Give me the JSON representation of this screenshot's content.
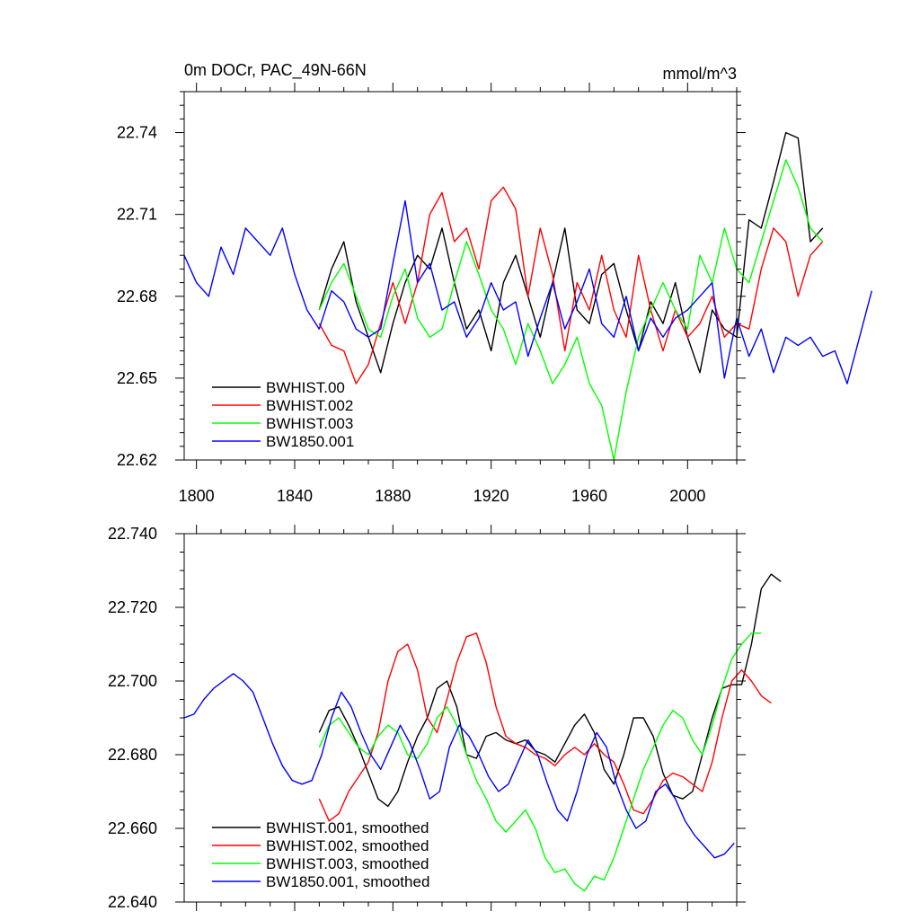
{
  "chart_data": [
    {
      "type": "line",
      "title": "0m DOCr, PAC_49N-66N",
      "units": "mmol/m^3",
      "xlabel": "",
      "ylabel": "",
      "xlim": [
        1795,
        2020
      ],
      "ylim": [
        22.62,
        22.755
      ],
      "xticks": [
        1800,
        1840,
        1880,
        1920,
        1960,
        2000
      ],
      "xtick_labels": [
        "1800",
        "1840",
        "1880",
        "1920",
        "1960",
        "2000"
      ],
      "yticks": [
        22.62,
        22.65,
        22.68,
        22.71,
        22.74
      ],
      "ytick_labels": [
        "22.62",
        "22.65",
        "22.68",
        "22.71",
        "22.74"
      ],
      "legend_position": "bottom-left",
      "series": [
        {
          "name": "BWHIST.00",
          "color": "#000000",
          "x0": 1850,
          "step": 5,
          "values": [
            22.675,
            22.69,
            22.7,
            22.678,
            22.665,
            22.652,
            22.67,
            22.685,
            22.695,
            22.69,
            22.705,
            22.685,
            22.668,
            22.675,
            22.66,
            22.685,
            22.695,
            22.68,
            22.665,
            22.685,
            22.705,
            22.675,
            22.67,
            22.688,
            22.692,
            22.675,
            22.66,
            22.678,
            22.67,
            22.685,
            22.665,
            22.652,
            22.675,
            22.668,
            22.665,
            22.708,
            22.705,
            22.722,
            22.74,
            22.738,
            22.7,
            22.705
          ]
        },
        {
          "name": "BWHIST.002",
          "color": "#ff0000",
          "x0": 1850,
          "step": 5,
          "values": [
            22.67,
            22.662,
            22.66,
            22.648,
            22.655,
            22.67,
            22.685,
            22.67,
            22.685,
            22.71,
            22.718,
            22.7,
            22.705,
            22.69,
            22.715,
            22.72,
            22.712,
            22.68,
            22.705,
            22.688,
            22.66,
            22.685,
            22.675,
            22.695,
            22.675,
            22.665,
            22.695,
            22.675,
            22.66,
            22.675,
            22.665,
            22.67,
            22.68,
            22.665,
            22.67,
            22.668,
            22.69,
            22.705,
            22.7,
            22.68,
            22.695,
            22.7
          ]
        },
        {
          "name": "BWHIST.003",
          "color": "#00ff00",
          "x0": 1850,
          "step": 5,
          "values": [
            22.675,
            22.685,
            22.692,
            22.68,
            22.668,
            22.665,
            22.68,
            22.69,
            22.672,
            22.665,
            22.668,
            22.685,
            22.7,
            22.688,
            22.675,
            22.668,
            22.655,
            22.67,
            22.66,
            22.648,
            22.655,
            22.665,
            22.648,
            22.64,
            22.62,
            22.645,
            22.665,
            22.675,
            22.685,
            22.675,
            22.668,
            22.695,
            22.685,
            22.705,
            22.69,
            22.685,
            22.7,
            22.715,
            22.73,
            22.72,
            22.705,
            22.7
          ]
        },
        {
          "name": "BW1850.001",
          "color": "#0000ff",
          "x0": 1795,
          "step": 5,
          "values": [
            22.695,
            22.685,
            22.68,
            22.698,
            22.688,
            22.705,
            22.7,
            22.695,
            22.705,
            22.688,
            22.675,
            22.668,
            22.682,
            22.678,
            22.668,
            22.665,
            22.668,
            22.692,
            22.715,
            22.685,
            22.692,
            22.675,
            22.678,
            22.665,
            22.672,
            22.685,
            22.675,
            22.678,
            22.658,
            22.672,
            22.685,
            22.668,
            22.678,
            22.69,
            22.67,
            22.665,
            22.68,
            22.66,
            22.672,
            22.665,
            22.672,
            22.675,
            22.68,
            22.685,
            22.65,
            22.672,
            22.658,
            22.668,
            22.652,
            22.665,
            22.662,
            22.665,
            22.658,
            22.66,
            22.648,
            22.665,
            22.682
          ]
        }
      ]
    },
    {
      "type": "line",
      "title": "",
      "xlabel": "",
      "ylabel": "",
      "xlim": [
        1795,
        2020
      ],
      "ylim": [
        22.64,
        22.74
      ],
      "xticks": [
        1800,
        1840,
        1880,
        1920,
        1960,
        2000
      ],
      "yticks": [
        22.64,
        22.66,
        22.68,
        22.7,
        22.72,
        22.74
      ],
      "ytick_labels": [
        "22.640",
        "22.660",
        "22.680",
        "22.700",
        "22.720",
        "22.740"
      ],
      "legend_position": "bottom-left",
      "series": [
        {
          "name": "BWHIST.001, smoothed",
          "color": "#000000",
          "x0": 1850,
          "step": 4,
          "values": [
            22.686,
            22.692,
            22.693,
            22.688,
            22.682,
            22.675,
            22.668,
            22.666,
            22.67,
            22.678,
            22.685,
            22.69,
            22.698,
            22.7,
            22.693,
            22.68,
            22.679,
            22.685,
            22.686,
            22.684,
            22.683,
            22.684,
            22.681,
            22.68,
            22.678,
            22.683,
            22.688,
            22.691,
            22.686,
            22.676,
            22.672,
            22.68,
            22.69,
            22.69,
            22.685,
            22.675,
            22.669,
            22.668,
            22.67,
            22.68,
            22.69,
            22.698,
            22.699,
            22.699,
            22.71,
            22.725,
            22.729,
            22.727
          ]
        },
        {
          "name": "BWHIST.002, smoothed",
          "color": "#ff0000",
          "x0": 1850,
          "step": 4,
          "values": [
            22.668,
            22.662,
            22.664,
            22.67,
            22.674,
            22.678,
            22.686,
            22.7,
            22.708,
            22.71,
            22.703,
            22.69,
            22.686,
            22.695,
            22.705,
            22.712,
            22.713,
            22.705,
            22.693,
            22.685,
            22.683,
            22.682,
            22.68,
            22.679,
            22.677,
            22.68,
            22.682,
            22.68,
            22.683,
            22.68,
            22.678,
            22.672,
            22.665,
            22.664,
            22.668,
            22.673,
            22.675,
            22.674,
            22.672,
            22.67,
            22.678,
            22.69,
            22.7,
            22.703,
            22.7,
            22.696,
            22.694
          ]
        },
        {
          "name": "BWHIST.003, smoothed",
          "color": "#00ff00",
          "x0": 1850,
          "step": 4,
          "values": [
            22.682,
            22.688,
            22.69,
            22.686,
            22.682,
            22.68,
            22.685,
            22.688,
            22.686,
            22.68,
            22.679,
            22.683,
            22.69,
            22.693,
            22.688,
            22.68,
            22.673,
            22.668,
            22.662,
            22.659,
            22.662,
            22.665,
            22.66,
            22.652,
            22.648,
            22.649,
            22.645,
            22.643,
            22.647,
            22.646,
            22.652,
            22.66,
            22.668,
            22.676,
            22.682,
            22.688,
            22.692,
            22.69,
            22.684,
            22.68,
            22.688,
            22.698,
            22.706,
            22.71,
            22.713,
            22.713
          ]
        },
        {
          "name": "BW1850.001, smoothed",
          "color": "#0000ff",
          "x0": 1795,
          "step": 4,
          "values": [
            22.69,
            22.691,
            22.695,
            22.698,
            22.7,
            22.702,
            22.7,
            22.697,
            22.69,
            22.683,
            22.677,
            22.673,
            22.672,
            22.673,
            22.68,
            22.69,
            22.697,
            22.693,
            22.686,
            22.68,
            22.676,
            22.682,
            22.688,
            22.683,
            22.676,
            22.668,
            22.67,
            22.682,
            22.688,
            22.685,
            22.68,
            22.674,
            22.67,
            22.672,
            22.678,
            22.684,
            22.68,
            22.672,
            22.665,
            22.662,
            22.67,
            22.68,
            22.686,
            22.682,
            22.672,
            22.665,
            22.66,
            22.662,
            22.67,
            22.672,
            22.668,
            22.662,
            22.658,
            22.655,
            22.652,
            22.653,
            22.656
          ]
        }
      ]
    }
  ]
}
